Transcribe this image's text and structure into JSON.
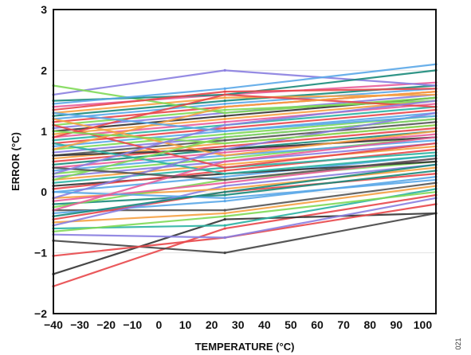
{
  "figure_id": "021",
  "chart_data": {
    "type": "line",
    "title": "",
    "xlabel": "TEMPERATURE (°C)",
    "ylabel": "ERROR (°C)",
    "xlim": [
      -40,
      105
    ],
    "ylim": [
      -2,
      3
    ],
    "x_ticks": [
      -40,
      -30,
      -20,
      -10,
      0,
      10,
      20,
      30,
      40,
      50,
      60,
      70,
      80,
      90,
      100
    ],
    "x_tick_labels": [
      "−40",
      "−30",
      "−20",
      "−10",
      "0",
      "10",
      "20",
      "30",
      "40",
      "50",
      "60",
      "70",
      "80",
      "90",
      "100"
    ],
    "y_ticks": [
      -2,
      -1,
      0,
      1,
      2,
      3
    ],
    "y_tick_labels": [
      "−2",
      "−1",
      "0",
      "1",
      "2",
      "3"
    ],
    "grid": true,
    "legend": "none",
    "x": [
      -40,
      25,
      105
    ],
    "series": [
      {
        "color": "#e8474a",
        "values": [
          -1.55,
          -0.6,
          -0.05
        ]
      },
      {
        "color": "#333333",
        "values": [
          -1.35,
          -0.45,
          -0.35
        ]
      },
      {
        "color": "#444444",
        "values": [
          -0.8,
          -1.0,
          -0.35
        ]
      },
      {
        "color": "#e8474a",
        "values": [
          -1.05,
          -0.75,
          -0.2
        ]
      },
      {
        "color": "#8a7ee0",
        "values": [
          -0.7,
          -0.75,
          -0.1
        ]
      },
      {
        "color": "#2bb3a3",
        "values": [
          -0.6,
          -0.55,
          0.05
        ]
      },
      {
        "color": "#f5a142",
        "values": [
          -0.5,
          -0.35,
          0.1
        ]
      },
      {
        "color": "#7ed957",
        "values": [
          -0.65,
          -0.4,
          0.0
        ]
      },
      {
        "color": "#555555",
        "values": [
          -0.3,
          -0.3,
          0.15
        ]
      },
      {
        "color": "#5aa7e8",
        "values": [
          -0.35,
          -0.15,
          0.25
        ]
      },
      {
        "color": "#e8474a",
        "values": [
          -0.45,
          0.0,
          0.3
        ]
      },
      {
        "color": "#1a8a7a",
        "values": [
          -0.2,
          -0.05,
          0.35
        ]
      },
      {
        "color": "#8a7ee0",
        "values": [
          -0.55,
          0.1,
          0.45
        ]
      },
      {
        "color": "#f5a142",
        "values": [
          -0.1,
          0.05,
          0.4
        ]
      },
      {
        "color": "#7ed957",
        "values": [
          -0.25,
          0.2,
          0.5
        ]
      },
      {
        "color": "#e85d9a",
        "values": [
          -0.15,
          0.15,
          0.55
        ]
      },
      {
        "color": "#5aa7e8",
        "values": [
          0.0,
          0.25,
          0.6
        ]
      },
      {
        "color": "#333333",
        "values": [
          0.1,
          0.3,
          0.5
        ]
      },
      {
        "color": "#e8474a",
        "values": [
          0.05,
          0.35,
          0.7
        ]
      },
      {
        "color": "#2bb3a3",
        "values": [
          0.15,
          0.4,
          0.65
        ]
      },
      {
        "color": "#f5a142",
        "values": [
          0.2,
          0.45,
          0.75
        ]
      },
      {
        "color": "#8a7ee0",
        "values": [
          0.25,
          0.5,
          0.8
        ]
      },
      {
        "color": "#7ed957",
        "values": [
          0.3,
          0.55,
          0.9
        ]
      },
      {
        "color": "#5aa7e8",
        "values": [
          0.35,
          0.6,
          0.85
        ]
      },
      {
        "color": "#e85d9a",
        "values": [
          0.4,
          0.65,
          0.95
        ]
      },
      {
        "color": "#1a8a7a",
        "values": [
          0.45,
          0.7,
          1.0
        ]
      },
      {
        "color": "#e8474a",
        "values": [
          0.5,
          0.75,
          1.05
        ]
      },
      {
        "color": "#f5a142",
        "values": [
          0.55,
          0.8,
          1.1
        ]
      },
      {
        "color": "#555555",
        "values": [
          0.6,
          0.85,
          1.15
        ]
      },
      {
        "color": "#8a7ee0",
        "values": [
          0.65,
          0.9,
          1.2
        ]
      },
      {
        "color": "#7ed957",
        "values": [
          0.7,
          0.95,
          1.25
        ]
      },
      {
        "color": "#5aa7e8",
        "values": [
          0.75,
          1.0,
          1.3
        ]
      },
      {
        "color": "#e8474a",
        "values": [
          0.8,
          1.05,
          1.35
        ]
      },
      {
        "color": "#2bb3a3",
        "values": [
          0.85,
          1.1,
          1.4
        ]
      },
      {
        "color": "#e85d9a",
        "values": [
          0.9,
          1.15,
          1.45
        ]
      },
      {
        "color": "#f5a142",
        "values": [
          0.95,
          1.2,
          1.5
        ]
      },
      {
        "color": "#333333",
        "values": [
          1.0,
          1.25,
          1.55
        ]
      },
      {
        "color": "#8a7ee0",
        "values": [
          1.05,
          1.3,
          1.6
        ]
      },
      {
        "color": "#7ed957",
        "values": [
          1.1,
          1.35,
          1.5
        ]
      },
      {
        "color": "#e8474a",
        "values": [
          1.15,
          1.4,
          1.65
        ]
      },
      {
        "color": "#5aa7e8",
        "values": [
          1.2,
          1.45,
          1.7
        ]
      },
      {
        "color": "#1a8a7a",
        "values": [
          1.25,
          1.5,
          1.75
        ]
      },
      {
        "color": "#f5a142",
        "values": [
          1.3,
          1.55,
          1.6
        ]
      },
      {
        "color": "#e85d9a",
        "values": [
          1.4,
          1.6,
          1.8
        ]
      },
      {
        "color": "#8a7ee0",
        "values": [
          1.6,
          2.0,
          1.75
        ]
      },
      {
        "color": "#7ed957",
        "values": [
          1.75,
          1.3,
          1.55
        ]
      },
      {
        "color": "#1a8a7a",
        "values": [
          1.5,
          1.6,
          2.0
        ]
      },
      {
        "color": "#5aa7e8",
        "values": [
          1.45,
          1.7,
          2.1
        ]
      },
      {
        "color": "#e8474a",
        "values": [
          1.35,
          1.65,
          1.7
        ]
      },
      {
        "color": "#333333",
        "values": [
          0.6,
          0.7,
          0.9
        ]
      },
      {
        "color": "#e8474a",
        "values": [
          1.1,
          0.4,
          0.8
        ]
      },
      {
        "color": "#2bb3a3",
        "values": [
          0.8,
          0.3,
          0.6
        ]
      },
      {
        "color": "#f5a142",
        "values": [
          1.2,
          0.6,
          1.0
        ]
      },
      {
        "color": "#7ed957",
        "values": [
          0.2,
          0.9,
          1.2
        ]
      },
      {
        "color": "#8a7ee0",
        "values": [
          -0.1,
          0.7,
          1.3
        ]
      },
      {
        "color": "#5aa7e8",
        "values": [
          0.0,
          -0.1,
          0.2
        ]
      },
      {
        "color": "#e85d9a",
        "values": [
          -0.3,
          0.5,
          0.9
        ]
      },
      {
        "color": "#555555",
        "values": [
          0.4,
          0.2,
          0.55
        ]
      },
      {
        "color": "#1a8a7a",
        "values": [
          -0.4,
          0.0,
          0.45
        ]
      },
      {
        "color": "#e8474a",
        "values": [
          0.9,
          1.6,
          1.4
        ]
      },
      {
        "color": "#f5a142",
        "values": [
          0.7,
          1.4,
          1.65
        ]
      },
      {
        "color": "#7ed957",
        "values": [
          1.0,
          0.8,
          1.1
        ]
      },
      {
        "color": "#8a7ee0",
        "values": [
          0.3,
          1.1,
          1.5
        ]
      },
      {
        "color": "#5aa7e8",
        "values": [
          1.3,
          1.0,
          1.25
        ]
      }
    ]
  }
}
